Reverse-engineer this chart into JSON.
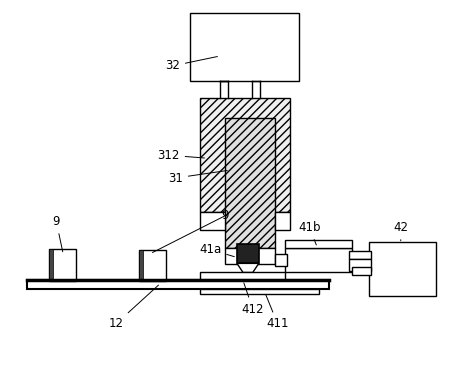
{
  "bg_color": "#ffffff",
  "lc": "#555555",
  "black": "#000000",
  "gray_hatch": "#e8e8e8",
  "dark_gray": "#444444",
  "fs": 8.5
}
